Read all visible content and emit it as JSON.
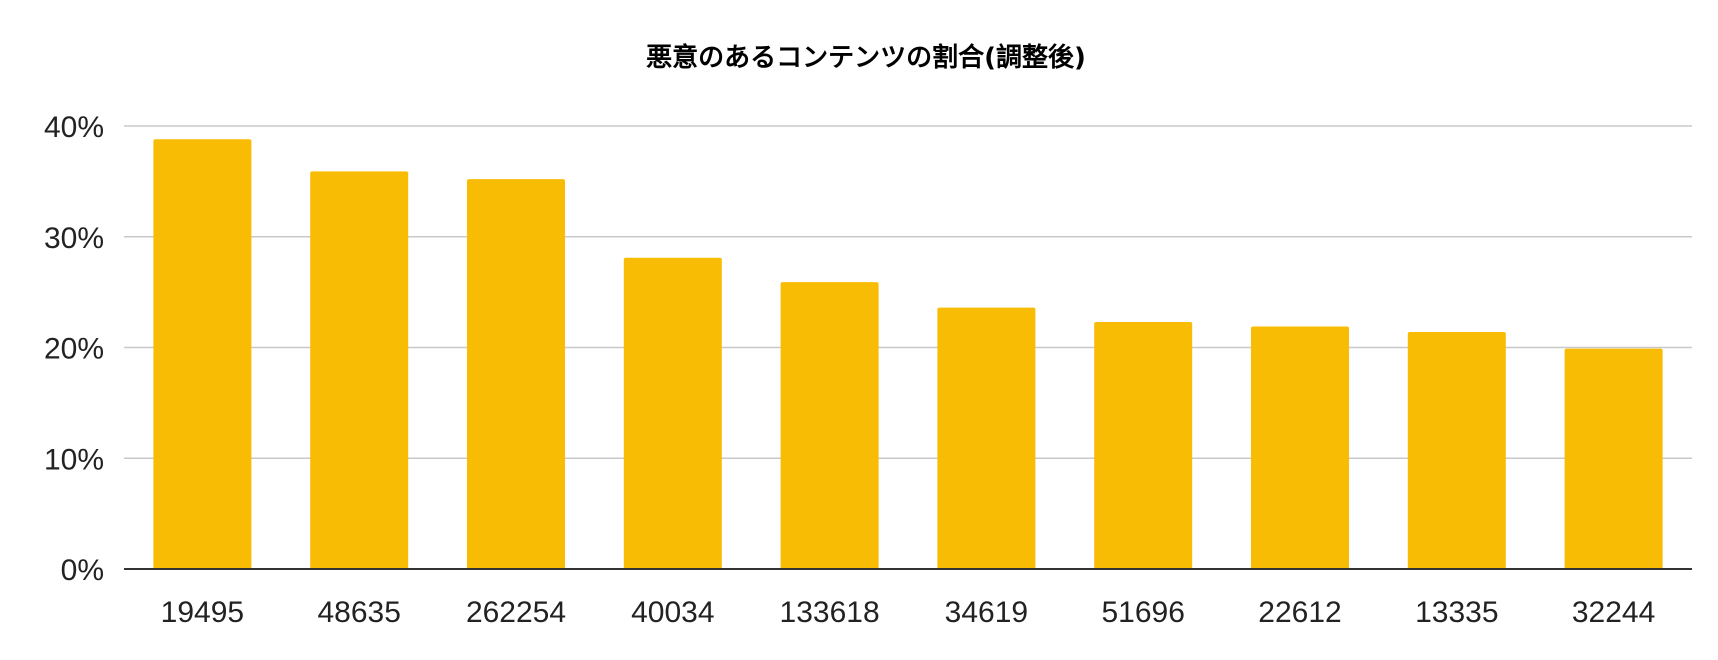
{
  "chart_data": {
    "type": "bar",
    "title": "悪意のあるコンテンツの割合(調整後)",
    "xlabel": "",
    "ylabel": "",
    "categories": [
      "19495",
      "48635",
      "262254",
      "40034",
      "133618",
      "34619",
      "51696",
      "22612",
      "13335",
      "32244"
    ],
    "values": [
      38.8,
      35.9,
      35.2,
      28.1,
      25.9,
      23.6,
      22.3,
      21.9,
      21.4,
      19.9
    ],
    "ylim": [
      0,
      40
    ],
    "yticks": [
      0,
      10,
      20,
      30,
      40
    ],
    "ytick_labels": [
      "0%",
      "10%",
      "20%",
      "30%",
      "40%"
    ],
    "grid": true,
    "legend": "none",
    "bar_color": "#F9BC04",
    "gridline_color": "#C8C8C8",
    "axis_color": "#333333"
  }
}
